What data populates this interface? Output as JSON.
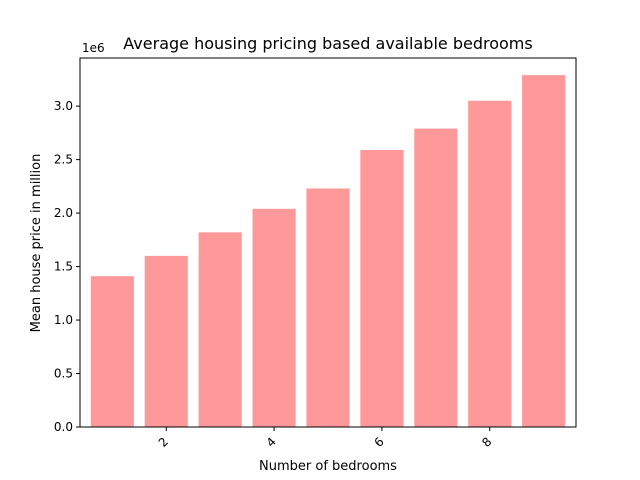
{
  "chart_data": {
    "type": "bar",
    "title": "Average housing pricing based available bedrooms",
    "xlabel": "Number of bedrooms",
    "ylabel": "Mean house price in million",
    "y_offset_label": "1e6",
    "categories": [
      1,
      2,
      3,
      4,
      5,
      6,
      7,
      8,
      9
    ],
    "values": [
      1.41,
      1.6,
      1.82,
      2.04,
      2.23,
      2.59,
      2.79,
      3.05,
      3.29
    ],
    "value_scale": 1000000,
    "xlim": [
      0.4,
      9.6
    ],
    "ylim": [
      0,
      3.45
    ],
    "xticks": [
      2,
      4,
      6,
      8
    ],
    "xtick_labels": [
      "2",
      "4",
      "6",
      "8"
    ],
    "yticks": [
      0.0,
      0.5,
      1.0,
      1.5,
      2.0,
      2.5,
      3.0
    ],
    "ytick_labels": [
      "0.0",
      "0.5",
      "1.0",
      "1.5",
      "2.0",
      "2.5",
      "3.0"
    ],
    "xtick_rotation_deg": 45,
    "bar_color": "#ff9999",
    "grid": false,
    "legend": false
  }
}
